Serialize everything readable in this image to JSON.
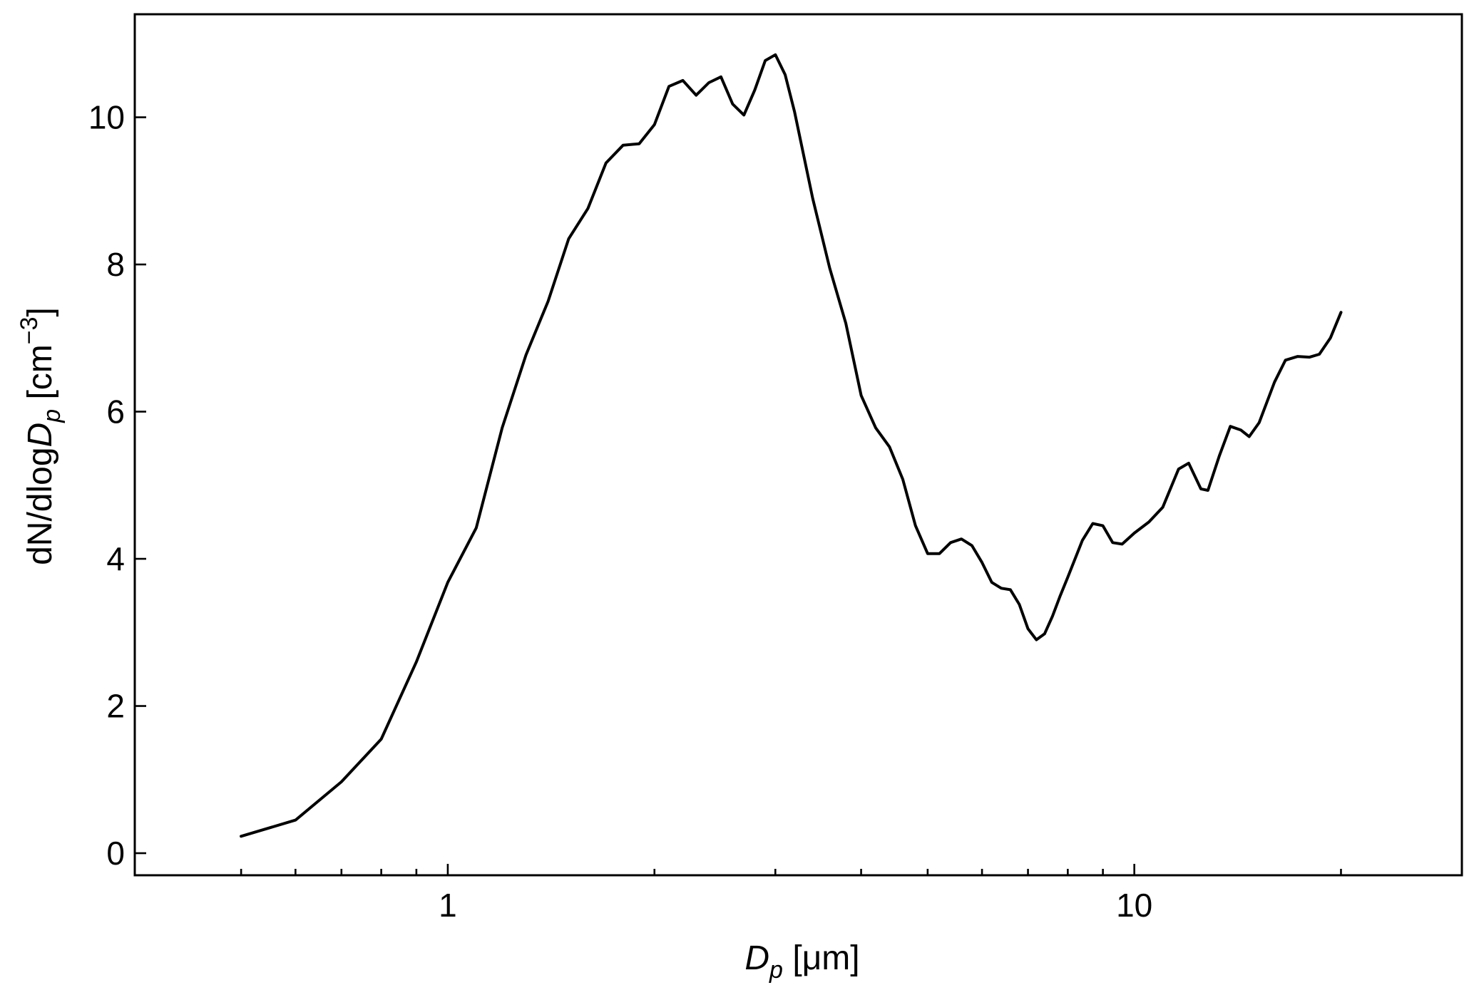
{
  "chart_data": {
    "type": "line",
    "xscale": "log",
    "xlim": [
      0.35,
      30
    ],
    "ylim": [
      -0.3,
      11.4
    ],
    "grid": false,
    "xlabel": {
      "main": "D",
      "sub": "p",
      "unit": "[μm]"
    },
    "ylabel": {
      "prefix": "dN/dlog",
      "main": "D",
      "sub": "p",
      "unit_open": "[cm",
      "unit_sup": "−3",
      "unit_close": "]"
    },
    "x_ticks": [
      {
        "value": 1,
        "label": "1"
      },
      {
        "value": 10,
        "label": "10"
      }
    ],
    "x_minor_ticks": [
      0.5,
      0.6,
      0.7,
      0.8,
      0.9,
      2,
      3,
      4,
      5,
      6,
      7,
      8,
      9,
      20
    ],
    "y_ticks": [
      {
        "value": 0,
        "label": "0"
      },
      {
        "value": 2,
        "label": "2"
      },
      {
        "value": 4,
        "label": "4"
      },
      {
        "value": 6,
        "label": "6"
      },
      {
        "value": 8,
        "label": "8"
      },
      {
        "value": 10,
        "label": "10"
      }
    ],
    "series": [
      {
        "color": "#000000",
        "points": [
          [
            0.5,
            0.23
          ],
          [
            0.6,
            0.45
          ],
          [
            0.7,
            0.97
          ],
          [
            0.8,
            1.55
          ],
          [
            0.9,
            2.6
          ],
          [
            1.0,
            3.68
          ],
          [
            1.1,
            4.42
          ],
          [
            1.2,
            5.78
          ],
          [
            1.3,
            6.77
          ],
          [
            1.4,
            7.5
          ],
          [
            1.5,
            8.35
          ],
          [
            1.6,
            8.76
          ],
          [
            1.7,
            9.38
          ],
          [
            1.8,
            9.62
          ],
          [
            1.9,
            9.64
          ],
          [
            2.0,
            9.9
          ],
          [
            2.1,
            10.42
          ],
          [
            2.2,
            10.5
          ],
          [
            2.3,
            10.3
          ],
          [
            2.4,
            10.47
          ],
          [
            2.5,
            10.55
          ],
          [
            2.6,
            10.18
          ],
          [
            2.7,
            10.03
          ],
          [
            2.8,
            10.37
          ],
          [
            2.9,
            10.77
          ],
          [
            3.0,
            10.85
          ],
          [
            3.1,
            10.58
          ],
          [
            3.2,
            10.07
          ],
          [
            3.4,
            8.9
          ],
          [
            3.6,
            7.95
          ],
          [
            3.8,
            7.2
          ],
          [
            4.0,
            6.22
          ],
          [
            4.2,
            5.78
          ],
          [
            4.4,
            5.52
          ],
          [
            4.6,
            5.08
          ],
          [
            4.8,
            4.45
          ],
          [
            5.0,
            4.07
          ],
          [
            5.2,
            4.07
          ],
          [
            5.4,
            4.22
          ],
          [
            5.6,
            4.27
          ],
          [
            5.8,
            4.18
          ],
          [
            6.0,
            3.95
          ],
          [
            6.2,
            3.68
          ],
          [
            6.4,
            3.6
          ],
          [
            6.6,
            3.58
          ],
          [
            6.8,
            3.38
          ],
          [
            7.0,
            3.05
          ],
          [
            7.2,
            2.9
          ],
          [
            7.4,
            2.98
          ],
          [
            7.6,
            3.22
          ],
          [
            7.8,
            3.5
          ],
          [
            8.0,
            3.75
          ],
          [
            8.4,
            4.25
          ],
          [
            8.7,
            4.48
          ],
          [
            9.0,
            4.45
          ],
          [
            9.3,
            4.22
          ],
          [
            9.6,
            4.2
          ],
          [
            10.0,
            4.35
          ],
          [
            10.5,
            4.5
          ],
          [
            11.0,
            4.7
          ],
          [
            11.6,
            5.22
          ],
          [
            12.0,
            5.3
          ],
          [
            12.5,
            4.95
          ],
          [
            12.8,
            4.93
          ],
          [
            13.3,
            5.4
          ],
          [
            13.8,
            5.8
          ],
          [
            14.3,
            5.75
          ],
          [
            14.7,
            5.66
          ],
          [
            15.2,
            5.85
          ],
          [
            16.0,
            6.4
          ],
          [
            16.6,
            6.7
          ],
          [
            17.3,
            6.75
          ],
          [
            18.0,
            6.74
          ],
          [
            18.6,
            6.78
          ],
          [
            19.3,
            7.0
          ],
          [
            20.0,
            7.35
          ]
        ]
      }
    ]
  }
}
